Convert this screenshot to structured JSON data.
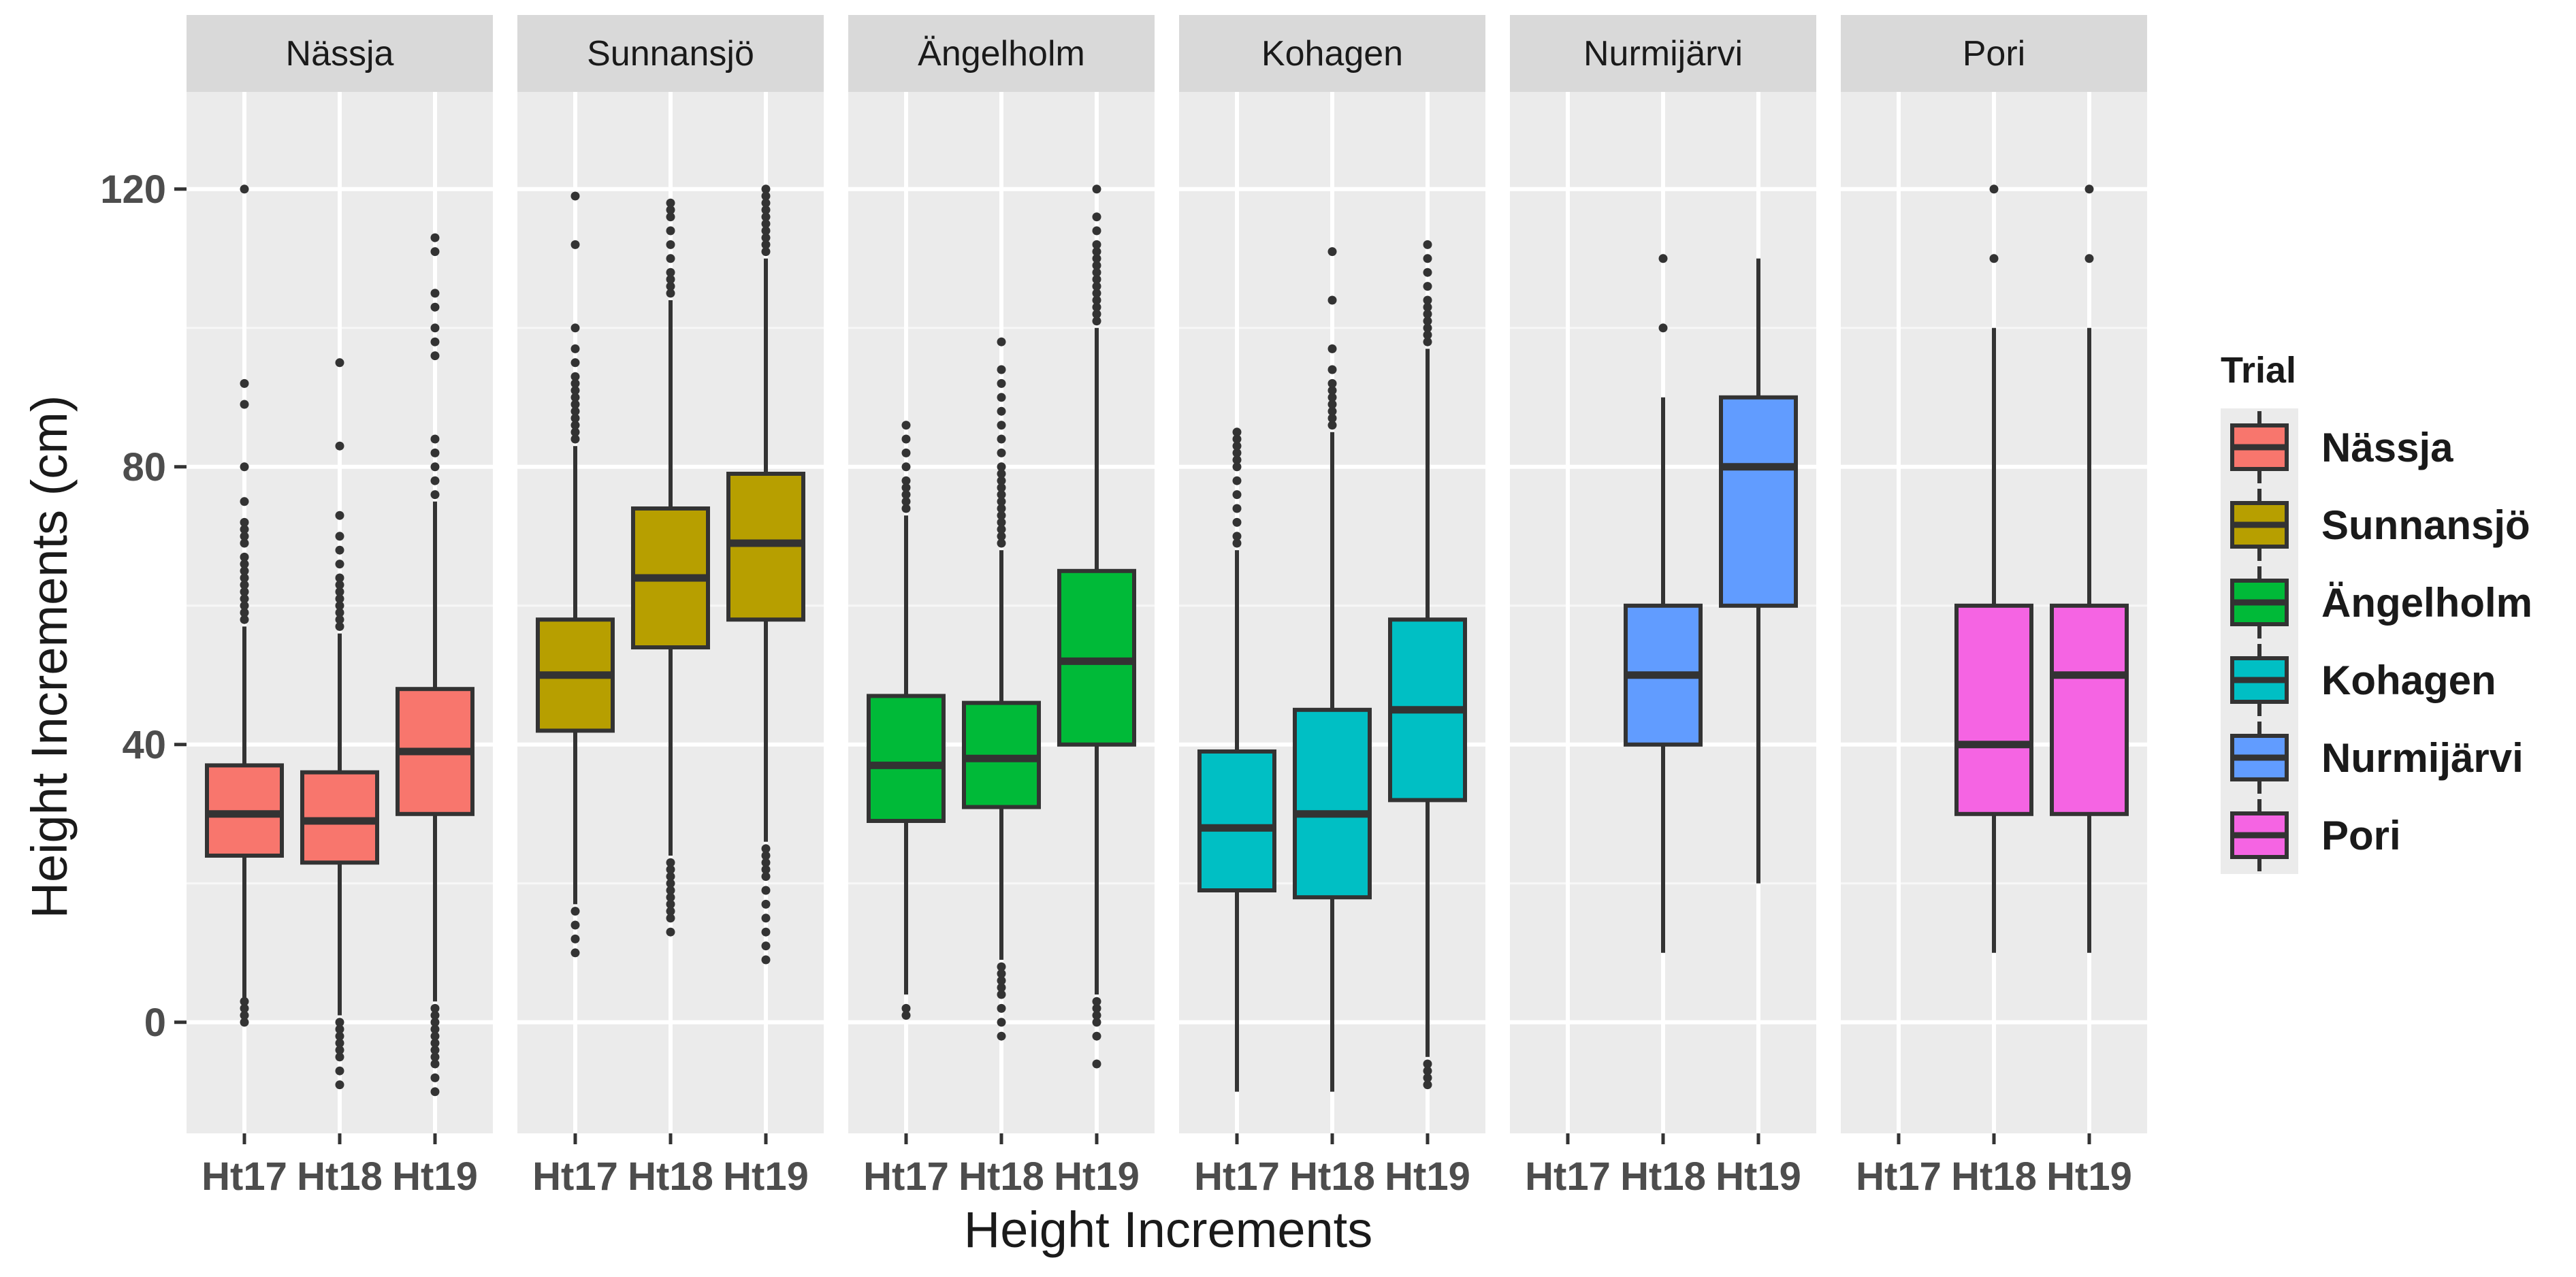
{
  "chart_data": {
    "type": "box",
    "title": "",
    "xlabel": "Height Increments",
    "ylabel": "Height Increments (cm)",
    "ylim": [
      -16,
      134
    ],
    "yticks": [
      0,
      40,
      80,
      120
    ],
    "ytick_labels": [
      "0",
      "40",
      "80",
      "120"
    ],
    "categories": [
      "Ht17",
      "Ht18",
      "Ht19"
    ],
    "legend": {
      "title": "Trial",
      "position": "right"
    },
    "facets": [
      {
        "name": "Nässja",
        "color": "#F8766D",
        "boxes": [
          {
            "x": "Ht17",
            "q1": 24,
            "median": 30,
            "q3": 37,
            "lower": 0,
            "upper": 57,
            "outliers": [
              0,
              1,
              2,
              3,
              58,
              59,
              60,
              61,
              62,
              63,
              64,
              65,
              66,
              67,
              69,
              70,
              71,
              72,
              75,
              80,
              89,
              92,
              120
            ]
          },
          {
            "x": "Ht18",
            "q1": 23,
            "median": 29,
            "q3": 36,
            "lower": 1,
            "upper": 56,
            "outliers": [
              -9,
              -7,
              -5,
              -4,
              -3,
              -2,
              -1,
              0,
              57,
              58,
              59,
              60,
              61,
              62,
              63,
              64,
              66,
              68,
              70,
              73,
              83,
              95
            ]
          },
          {
            "x": "Ht19",
            "q1": 30,
            "median": 39,
            "q3": 48,
            "lower": 3,
            "upper": 75,
            "outliers": [
              -10,
              -8,
              -6,
              -5,
              -4,
              -3,
              -2,
              -1,
              0,
              1,
              2,
              76,
              78,
              80,
              82,
              84,
              96,
              98,
              100,
              103,
              105,
              111,
              113
            ]
          }
        ]
      },
      {
        "name": "Sunnansjö",
        "color": "#B79F00",
        "boxes": [
          {
            "x": "Ht17",
            "q1": 42,
            "median": 50,
            "q3": 58,
            "lower": 17,
            "upper": 83,
            "outliers": [
              10,
              12,
              14,
              16,
              84,
              85,
              86,
              87,
              88,
              89,
              90,
              91,
              92,
              93,
              95,
              97,
              100,
              112,
              119
            ]
          },
          {
            "x": "Ht18",
            "q1": 54,
            "median": 64,
            "q3": 74,
            "lower": 24,
            "upper": 104,
            "outliers": [
              13,
              15,
              16,
              17,
              18,
              19,
              20,
              21,
              22,
              23,
              105,
              106,
              107,
              108,
              110,
              112,
              114,
              116,
              117,
              118
            ]
          },
          {
            "x": "Ht19",
            "q1": 58,
            "median": 69,
            "q3": 79,
            "lower": 26,
            "upper": 110,
            "outliers": [
              9,
              11,
              13,
              15,
              17,
              19,
              21,
              22,
              23,
              24,
              25,
              111,
              112,
              113,
              114,
              115,
              116,
              117,
              118,
              119,
              120
            ]
          }
        ]
      },
      {
        "name": "Ängelholm",
        "color": "#00BA38",
        "boxes": [
          {
            "x": "Ht17",
            "q1": 29,
            "median": 37,
            "q3": 47,
            "lower": 4,
            "upper": 73,
            "outliers": [
              1,
              2,
              74,
              75,
              76,
              77,
              78,
              80,
              82,
              84,
              86
            ]
          },
          {
            "x": "Ht18",
            "q1": 31,
            "median": 38,
            "q3": 46,
            "lower": 9,
            "upper": 68,
            "outliers": [
              -2,
              0,
              2,
              4,
              5,
              6,
              7,
              8,
              69,
              70,
              71,
              72,
              73,
              74,
              75,
              76,
              77,
              78,
              79,
              80,
              82,
              84,
              86,
              88,
              90,
              92,
              94,
              98
            ]
          },
          {
            "x": "Ht19",
            "q1": 40,
            "median": 52,
            "q3": 65,
            "lower": 4,
            "upper": 100,
            "outliers": [
              -6,
              -2,
              0,
              1,
              2,
              3,
              101,
              102,
              103,
              104,
              105,
              106,
              107,
              108,
              109,
              110,
              111,
              112,
              114,
              116,
              120
            ]
          }
        ]
      },
      {
        "name": "Kohagen",
        "color": "#00BFC4",
        "boxes": [
          {
            "x": "Ht17",
            "q1": 19,
            "median": 28,
            "q3": 39,
            "lower": -10,
            "upper": 68,
            "outliers": [
              69,
              70,
              72,
              74,
              76,
              78,
              80,
              81,
              82,
              83,
              84,
              85
            ]
          },
          {
            "x": "Ht18",
            "q1": 18,
            "median": 30,
            "q3": 45,
            "lower": -10,
            "upper": 85,
            "outliers": [
              86,
              87,
              88,
              89,
              90,
              91,
              92,
              94,
              97,
              104,
              111
            ]
          },
          {
            "x": "Ht19",
            "q1": 32,
            "median": 45,
            "q3": 58,
            "lower": -5,
            "upper": 97,
            "outliers": [
              -9,
              -8,
              -7,
              -6,
              98,
              99,
              100,
              101,
              102,
              103,
              104,
              106,
              108,
              110,
              112
            ]
          }
        ]
      },
      {
        "name": "Nurmijärvi",
        "color": "#619CFF",
        "boxes": [
          {
            "x": "Ht18",
            "q1": 40,
            "median": 50,
            "q3": 60,
            "lower": 10,
            "upper": 90,
            "outliers": [
              100,
              110
            ]
          },
          {
            "x": "Ht19",
            "q1": 60,
            "median": 80,
            "q3": 90,
            "lower": 20,
            "upper": 110,
            "outliers": []
          }
        ]
      },
      {
        "name": "Pori",
        "color": "#F564E3",
        "boxes": [
          {
            "x": "Ht18",
            "q1": 30,
            "median": 40,
            "q3": 60,
            "lower": 10,
            "upper": 100,
            "outliers": [
              110,
              120
            ]
          },
          {
            "x": "Ht19",
            "q1": 30,
            "median": 50,
            "q3": 60,
            "lower": 10,
            "upper": 100,
            "outliers": [
              110,
              120
            ]
          }
        ]
      }
    ]
  }
}
